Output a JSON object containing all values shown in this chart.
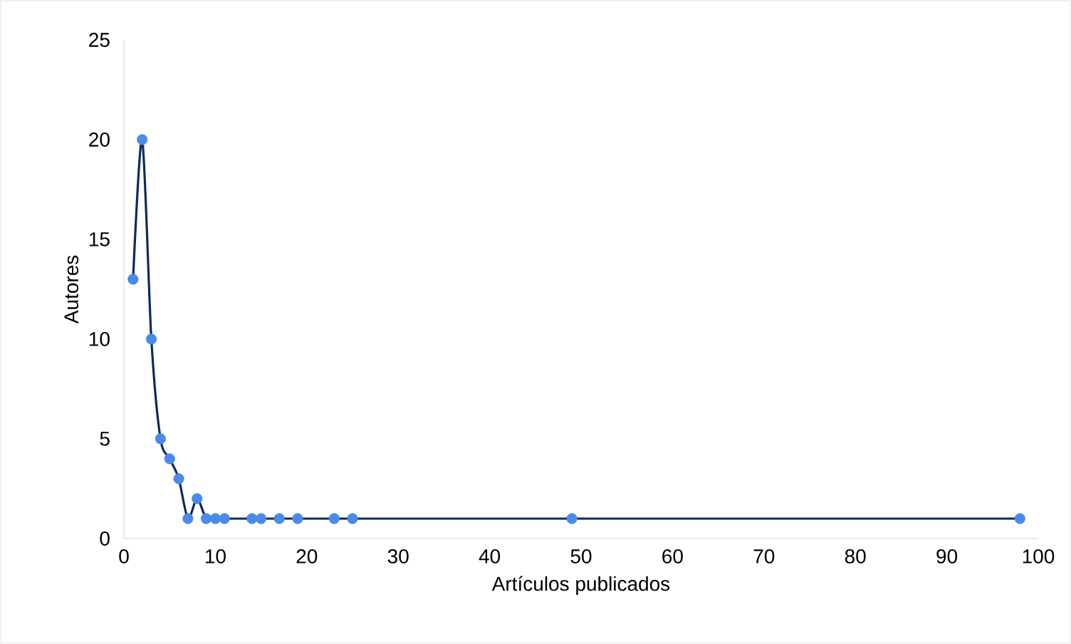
{
  "chart_data": {
    "type": "line",
    "xlabel": "Artículos publicados",
    "ylabel": "Autores",
    "x": [
      1,
      2,
      3,
      4,
      5,
      6,
      7,
      8,
      9,
      10,
      11,
      14,
      15,
      17,
      19,
      23,
      25,
      49,
      98
    ],
    "series": [
      {
        "color": "#0d2a5c",
        "colors": [
          "#4a8ae8",
          "#4a8ae8",
          "#4a8ae8",
          "#4a8ae8",
          "#4a8ae8",
          "#4a8ae8",
          "#4a8ae8",
          "#4a8ae8",
          "#4a8ae8",
          "#4a8ae8",
          "#4a8ae8",
          "#4a8ae8",
          "#4a8ae8",
          "#4a8ae8",
          "#4a8ae8",
          "#4a8ae8",
          "#4a8ae8",
          "#4a8ae8",
          "#4a8ae8"
        ],
        "values": [
          13,
          20,
          10,
          5,
          4,
          3,
          1,
          2,
          1,
          1,
          1,
          1,
          1,
          1,
          1,
          1,
          1,
          1,
          1
        ]
      }
    ],
    "xlim": [
      0,
      100
    ],
    "xticks": [
      0,
      10,
      20,
      30,
      40,
      50,
      60,
      70,
      80,
      90,
      100
    ],
    "ylim": [
      0,
      25
    ],
    "yticks": [
      0,
      5,
      10,
      15,
      20,
      25
    ],
    "grid": false,
    "marker": "circle",
    "line_style": "solid"
  }
}
